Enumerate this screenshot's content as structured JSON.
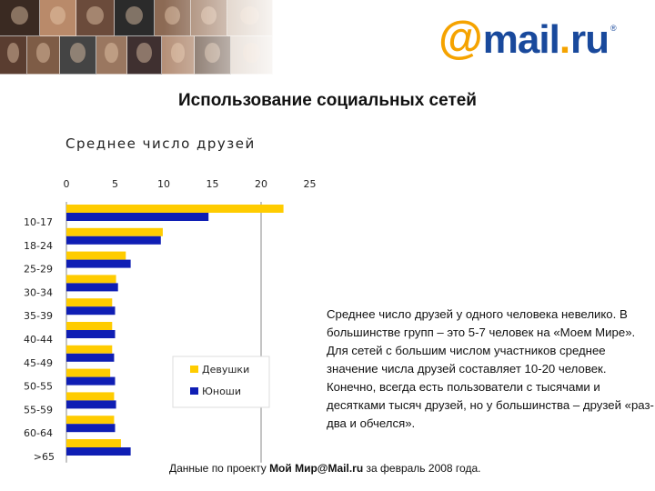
{
  "header": {
    "logo_text": "@mail.ru®",
    "logo_colors": {
      "at": "#f5a300",
      "mail": "#19499c",
      "dot": "#f5a300",
      "ru": "#19499c"
    }
  },
  "main_title": "Использование социальных сетей",
  "chart_title": "Среднее число друзей",
  "chart_data": {
    "type": "bar",
    "orientation": "horizontal",
    "title": "Среднее число друзей",
    "categories": [
      "10-17",
      "18-24",
      "25-29",
      "30-34",
      "35-39",
      "40-44",
      "45-49",
      "50-55",
      "55-59",
      "60-64",
      ">65"
    ],
    "series": [
      {
        "name": "Девушки",
        "color": "#ffcc00",
        "values": [
          22.3,
          9.9,
          6.1,
          5.1,
          4.7,
          4.7,
          4.7,
          4.5,
          4.9,
          4.9,
          5.6
        ]
      },
      {
        "name": "Юноши",
        "color": "#0f1eb4",
        "values": [
          14.6,
          9.7,
          6.6,
          5.3,
          5.0,
          5.0,
          4.9,
          5.0,
          5.1,
          5.0,
          6.6
        ]
      }
    ],
    "xlim": [
      0,
      25
    ],
    "xticks": [
      0,
      5,
      10,
      15,
      20,
      25
    ],
    "reference_line": 20,
    "legend_position": "inside-right",
    "grid": false
  },
  "description": "Среднее число друзей у одного человека невелико. В большинстве групп – это 5-7 человек на «Моем Мире». Для сетей с большим числом участников среднее значение числа друзей составляет 10-20 человек. Конечно, всегда есть пользователи с тысячами и десятками тысяч друзей, но у большинства – друзей «раз-два и обчелся».",
  "footer": {
    "prefix": "Данные по проекту ",
    "project": "Мой Мир@Mail.ru",
    "suffix": " за февраль 2008 года."
  }
}
